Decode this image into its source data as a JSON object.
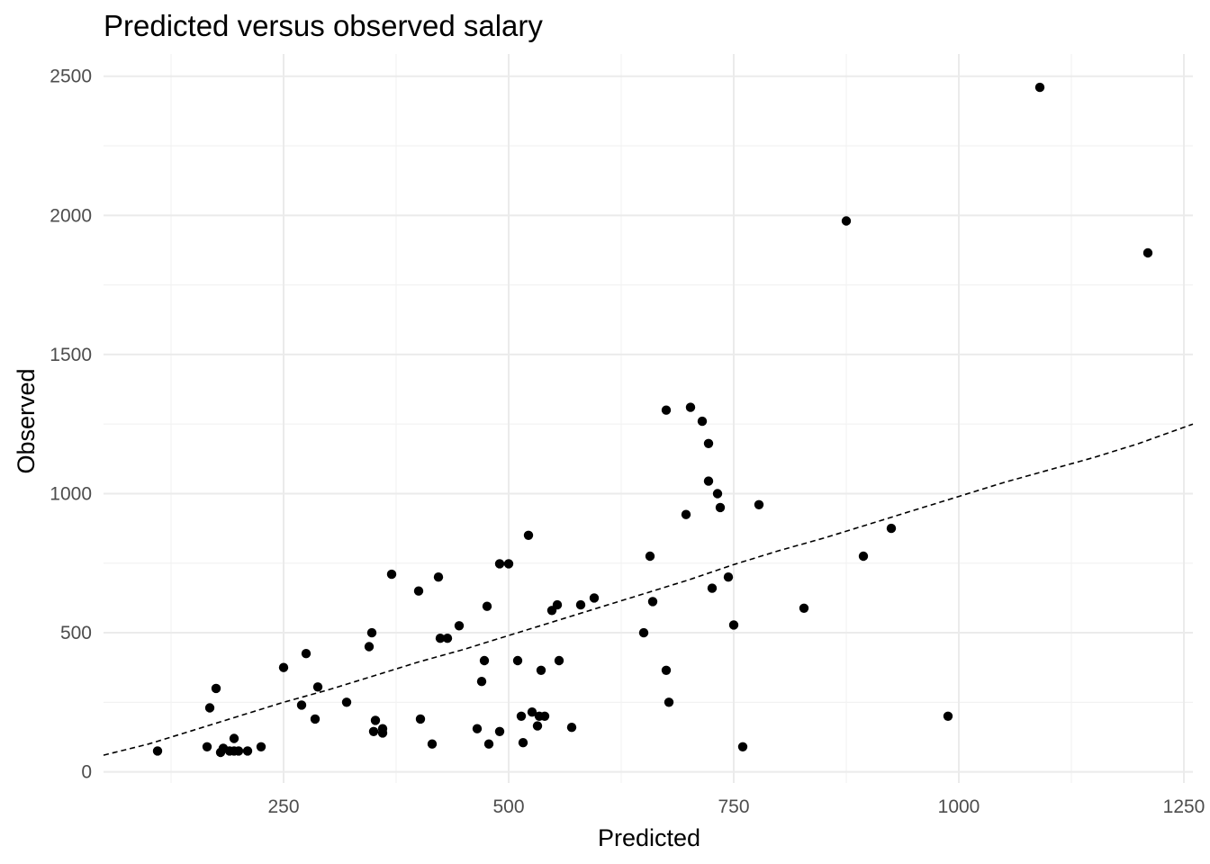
{
  "chart_data": {
    "type": "scatter",
    "title": "Predicted versus observed salary",
    "xlabel": "Predicted",
    "ylabel": "Observed",
    "xlim": [
      50,
      1260
    ],
    "ylim": [
      -40,
      2580
    ],
    "x_ticks": [
      250,
      500,
      750,
      1000,
      1250
    ],
    "x_tick_labels": [
      "250",
      "500",
      "750",
      "1000",
      "1250"
    ],
    "x_minor_ticks": [
      125,
      375,
      625,
      875,
      1125
    ],
    "y_ticks": [
      0,
      500,
      1000,
      1500,
      2000,
      2500
    ],
    "y_tick_labels": [
      "0",
      "500",
      "1000",
      "1500",
      "2000",
      "2500"
    ],
    "y_minor_ticks": [
      250,
      750,
      1250,
      1750,
      2250
    ],
    "grid": true,
    "legend": "none",
    "reference_line": {
      "style": "dashed",
      "color": "#000000",
      "x": [
        50,
        100,
        150,
        200,
        250,
        300,
        350,
        400,
        450,
        500,
        550,
        600,
        650,
        700,
        750,
        800,
        850,
        900,
        950,
        1000,
        1050,
        1100,
        1150,
        1200,
        1260
      ],
      "y": [
        60,
        100,
        150,
        200,
        250,
        295,
        345,
        395,
        440,
        490,
        540,
        590,
        640,
        690,
        745,
        795,
        840,
        890,
        940,
        990,
        1040,
        1085,
        1130,
        1180,
        1250
      ]
    },
    "series": [
      {
        "color": "#000000",
        "points": [
          [
            110,
            75
          ],
          [
            165,
            90
          ],
          [
            168,
            230
          ],
          [
            175,
            300
          ],
          [
            180,
            70
          ],
          [
            183,
            85
          ],
          [
            190,
            75
          ],
          [
            195,
            120
          ],
          [
            195,
            75
          ],
          [
            200,
            75
          ],
          [
            210,
            75
          ],
          [
            225,
            90
          ],
          [
            250,
            375
          ],
          [
            270,
            240
          ],
          [
            275,
            425
          ],
          [
            285,
            190
          ],
          [
            288,
            305
          ],
          [
            320,
            250
          ],
          [
            345,
            450
          ],
          [
            348,
            500
          ],
          [
            350,
            145
          ],
          [
            352,
            185
          ],
          [
            360,
            155
          ],
          [
            360,
            140
          ],
          [
            370,
            710
          ],
          [
            400,
            650
          ],
          [
            402,
            190
          ],
          [
            415,
            100
          ],
          [
            422,
            700
          ],
          [
            424,
            480
          ],
          [
            432,
            480
          ],
          [
            445,
            525
          ],
          [
            465,
            155
          ],
          [
            470,
            325
          ],
          [
            473,
            400
          ],
          [
            476,
            595
          ],
          [
            478,
            100
          ],
          [
            490,
            748
          ],
          [
            490,
            145
          ],
          [
            500,
            748
          ],
          [
            510,
            400
          ],
          [
            514,
            200
          ],
          [
            516,
            105
          ],
          [
            522,
            850
          ],
          [
            526,
            215
          ],
          [
            532,
            165
          ],
          [
            534,
            200
          ],
          [
            536,
            365
          ],
          [
            540,
            200
          ],
          [
            548,
            580
          ],
          [
            554,
            600
          ],
          [
            556,
            400
          ],
          [
            570,
            160
          ],
          [
            580,
            600
          ],
          [
            595,
            625
          ],
          [
            650,
            500
          ],
          [
            657,
            775
          ],
          [
            660,
            612
          ],
          [
            675,
            1300
          ],
          [
            675,
            365
          ],
          [
            678,
            250
          ],
          [
            697,
            925
          ],
          [
            702,
            1310
          ],
          [
            715,
            1260
          ],
          [
            722,
            1180
          ],
          [
            722,
            1045
          ],
          [
            726,
            660
          ],
          [
            732,
            1000
          ],
          [
            735,
            950
          ],
          [
            744,
            700
          ],
          [
            750,
            528
          ],
          [
            760,
            90
          ],
          [
            778,
            960
          ],
          [
            828,
            588
          ],
          [
            875,
            1980
          ],
          [
            894,
            775
          ],
          [
            925,
            875
          ],
          [
            988,
            200
          ],
          [
            1090,
            2460
          ],
          [
            1210,
            1865
          ]
        ]
      }
    ]
  }
}
